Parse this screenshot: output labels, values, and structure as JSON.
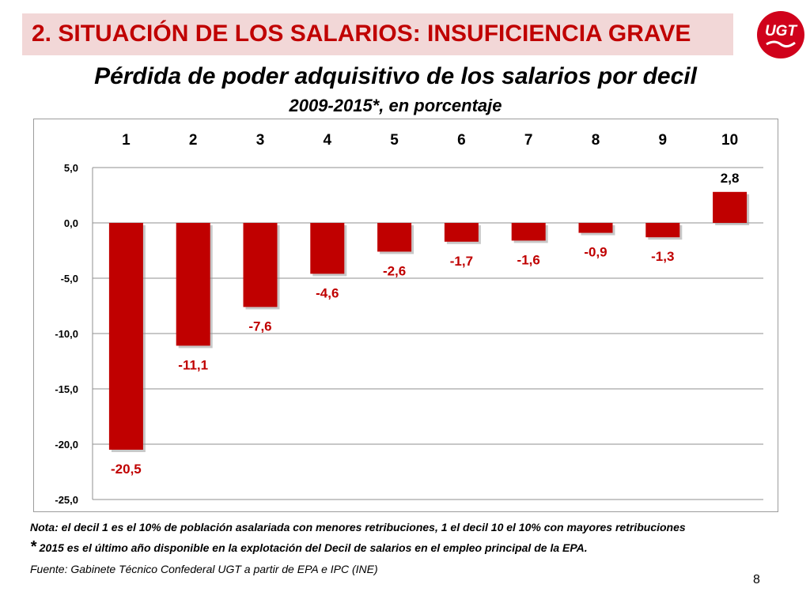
{
  "header": {
    "title": "2.  SITUACIÓN DE LOS SALARIOS: INSUFICIENCIA GRAVE",
    "logo_text": "UGT",
    "accent_color": "#c00000",
    "band_color": "#f2d7d7"
  },
  "chart_data": {
    "type": "bar",
    "title": "Pérdida de poder adquisitivo de los salarios por decil",
    "subtitle": "2009-2015*, en porcentaje",
    "categories": [
      "1",
      "2",
      "3",
      "4",
      "5",
      "6",
      "7",
      "8",
      "9",
      "10"
    ],
    "values": [
      -20.5,
      -11.1,
      -7.6,
      -4.6,
      -2.6,
      -1.7,
      -1.6,
      -0.9,
      -1.3,
      2.8
    ],
    "data_labels": [
      "-20,5",
      "-11,1",
      "-7,6",
      "-4,6",
      "-2,6",
      "-1,7",
      "-1,6",
      "-0,9",
      "-1,3",
      "2,8"
    ],
    "yticks": [
      5,
      0,
      -5,
      -10,
      -15,
      -20,
      -25
    ],
    "ytick_labels": [
      "5,0",
      "0,0",
      "-5,0",
      "-10,0",
      "-15,0",
      "-20,0",
      "-25,0"
    ],
    "ylim": [
      -25,
      5
    ],
    "xaxis_position": "top",
    "grid": true,
    "bar_color": "#c00000",
    "xlabel": "",
    "ylabel": ""
  },
  "notes": {
    "nota": "Nota: el decil 1 es el 10% de población asalariada con menores retribuciones, 1 el decil 10 el 10% con mayores retribuciones",
    "star_mark": "*",
    "star_note": " 2015 es el último año disponible en la explotación del Decil de salarios en el empleo principal de la EPA.",
    "source": "Fuente: Gabinete Técnico Confederal UGT a partir de EPA e IPC (INE)"
  },
  "page_number": "8"
}
